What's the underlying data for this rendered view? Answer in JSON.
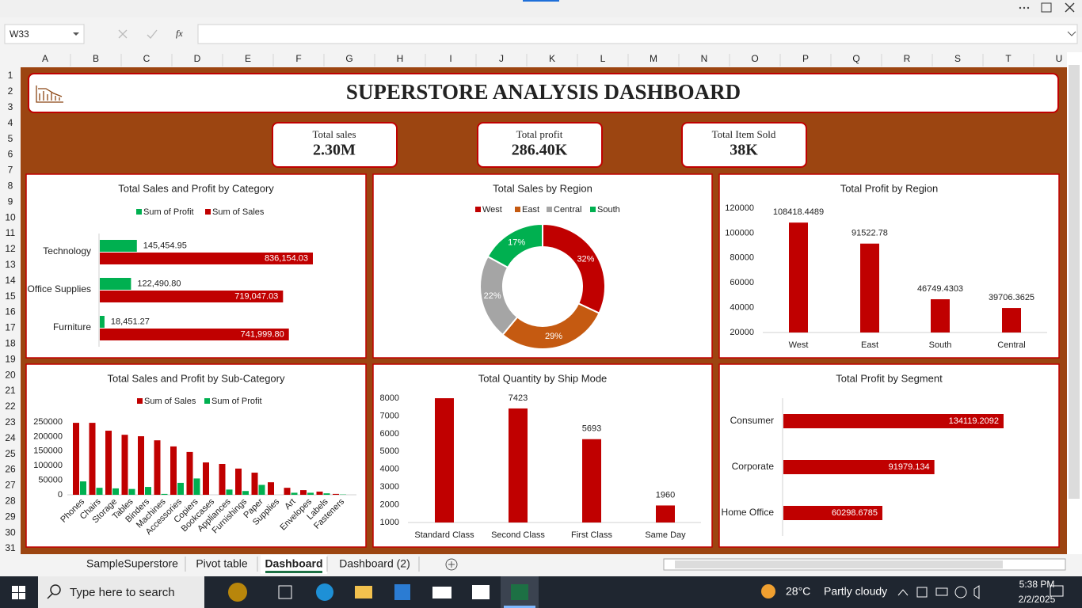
{
  "excel": {
    "name_box": "W33",
    "fx": "fx",
    "columns": [
      "A",
      "B",
      "C",
      "D",
      "E",
      "F",
      "G",
      "H",
      "I",
      "J",
      "K",
      "L",
      "M",
      "N",
      "O",
      "P",
      "Q",
      "R",
      "S",
      "T",
      "U"
    ],
    "rows": [
      1,
      2,
      3,
      4,
      5,
      6,
      7,
      8,
      9,
      10,
      11,
      12,
      13,
      14,
      15,
      16,
      17,
      18,
      19,
      20,
      21,
      22,
      23,
      24,
      25,
      26,
      27,
      28,
      29,
      30,
      31
    ],
    "sheet_tabs": [
      "SampleSuperstore",
      "Pivot table",
      "Dashboard",
      "Dashboard (2)"
    ],
    "active_tab": 2
  },
  "dashboard": {
    "title": "SUPERSTORE ANALYSIS DASHBOARD",
    "kpis": [
      {
        "label": "Total sales",
        "value": "2.30M"
      },
      {
        "label": "Total profit",
        "value": "286.40K"
      },
      {
        "label": "Total Item Sold",
        "value": "38K"
      }
    ]
  },
  "chart_data": [
    {
      "type": "hbar",
      "title": "Total Sales and Profit by Category",
      "legend": "top",
      "categories": [
        "Technology",
        "Office Supplies",
        "Furniture"
      ],
      "series": [
        {
          "name": "Sum of Profit",
          "color": "#00b050",
          "values": [
            145454.95,
            122490.8,
            18451.27
          ],
          "value_labels": [
            "145,454.95",
            "122,490.80",
            "18,451.27"
          ]
        },
        {
          "name": "Sum of Sales",
          "color": "#c00000",
          "values": [
            836154.03,
            719047.03,
            741999.8
          ],
          "value_labels": [
            "836,154.03",
            "719,047.03",
            "741,999.80"
          ]
        }
      ]
    },
    {
      "type": "donut",
      "title": "Total Sales by Region",
      "legend": "top",
      "categories": [
        "West",
        "East",
        "Central",
        "South"
      ],
      "values": [
        32,
        29,
        22,
        17
      ],
      "value_labels": [
        "32%",
        "29%",
        "22%",
        "17%"
      ],
      "colors": [
        "#c00000",
        "#c55a11",
        "#a5a5a5",
        "#00b050"
      ]
    },
    {
      "type": "bar",
      "title": "Total Profit by Region",
      "categories": [
        "West",
        "East",
        "South",
        "Central"
      ],
      "values": [
        108418.4489,
        91522.78,
        46749.4303,
        39706.3625
      ],
      "color": "#c00000",
      "ylim": [
        20000,
        120000
      ],
      "yticks": [
        20000,
        40000,
        60000,
        80000,
        100000,
        120000
      ]
    },
    {
      "type": "grouped_bar",
      "title": "Total Sales and Profit by Sub-Category",
      "legend": "top",
      "categories": [
        "Phones",
        "Chairs",
        "Storage",
        "Tables",
        "Binders",
        "Machines",
        "Accessories",
        "Copiers",
        "Bookcases",
        "Appliances",
        "Furnishings",
        "Paper",
        "Supplies",
        "Art",
        "Envelopes",
        "Labels",
        "Fasteners"
      ],
      "series": [
        {
          "name": "Sum of Sales",
          "color": "#c00000",
          "values": [
            247000,
            247000,
            220000,
            206000,
            201000,
            187000,
            166000,
            147000,
            111000,
            106000,
            90000,
            76000,
            43000,
            24000,
            16000,
            11000,
            3000
          ]
        },
        {
          "name": "Sum of Profit",
          "color": "#00b050",
          "values": [
            46000,
            24000,
            22000,
            20000,
            27000,
            3000,
            41000,
            56000,
            0,
            18000,
            13000,
            34000,
            0,
            7000,
            7000,
            5000,
            1000
          ]
        }
      ],
      "ylim": [
        0,
        250000
      ],
      "yticks": [
        0,
        50000,
        100000,
        150000,
        200000,
        250000
      ]
    },
    {
      "type": "bar",
      "title": "Total Quantity by Ship Mode",
      "categories": [
        "Standard Class",
        "Second Class",
        "First Class",
        "Same Day"
      ],
      "values": [
        8000,
        7423,
        5693,
        1960
      ],
      "data_labels": [
        false,
        true,
        true,
        true
      ],
      "color": "#c00000",
      "ylim": [
        1000,
        8000
      ],
      "yticks": [
        1000,
        2000,
        3000,
        4000,
        5000,
        6000,
        7000,
        8000
      ]
    },
    {
      "type": "hbar",
      "title": "Total Profit by Segment",
      "categories": [
        "Consumer",
        "Corporate",
        "Home Office"
      ],
      "values": [
        134119.2092,
        91979.134,
        60298.6785
      ],
      "color": "#c00000"
    }
  ],
  "taskbar": {
    "search": "Type here to search",
    "temperature": "28°C",
    "weather": "Partly cloudy",
    "time": "5:38 PM",
    "date": "2/2/2025"
  }
}
